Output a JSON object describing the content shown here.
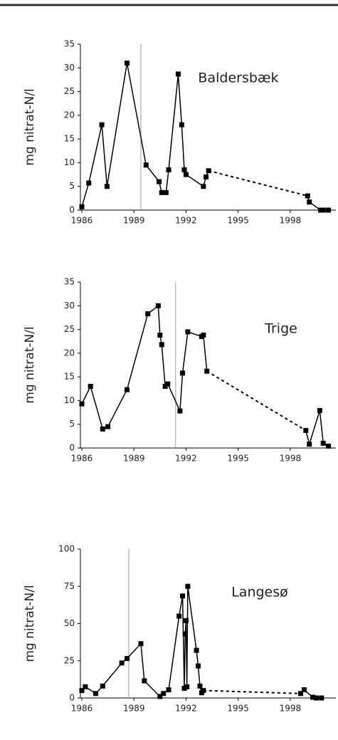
{
  "chart_data": [
    {
      "type": "line",
      "annotation": "Baldersbæk",
      "y_label": "mg nitrat-N/l",
      "color": "#000000",
      "x": [
        1986.0,
        1986.4,
        1987.15,
        1987.45,
        1988.6,
        1989.7,
        1990.45,
        1990.6,
        1990.85,
        1991.0,
        1991.55,
        1991.75,
        1991.9,
        1992.0,
        1993.0,
        1993.15,
        1993.3,
        1999.0,
        1999.1,
        1999.75,
        1999.9,
        2000.2
      ],
      "values": [
        0.7,
        5.7,
        18,
        5,
        31,
        9.5,
        6,
        3.7,
        3.7,
        8.5,
        28.7,
        18,
        8.5,
        7.5,
        5,
        7,
        8.3,
        3,
        1.7,
        0,
        0,
        0
      ],
      "dashed_segment_start": 16,
      "vline": 1989.4,
      "xlim": [
        1986,
        2000.3
      ],
      "ylim": [
        0,
        35
      ],
      "xticks": [
        1986,
        1989,
        1992,
        1995,
        1998
      ],
      "yticks": [
        0,
        5,
        10,
        15,
        20,
        25,
        30,
        35
      ]
    },
    {
      "type": "line",
      "annotation": "Trige",
      "y_label": "mg nitrat-N/l",
      "color": "#000000",
      "x": [
        1986.0,
        1986.5,
        1987.2,
        1987.5,
        1988.6,
        1989.8,
        1990.4,
        1990.5,
        1990.6,
        1990.8,
        1990.95,
        1991.65,
        1991.8,
        1992.1,
        1992.9,
        1993.0,
        1993.2,
        1998.9,
        1999.1,
        1999.7,
        1999.9,
        2000.2
      ],
      "values": [
        9.3,
        13,
        4,
        4.5,
        12.3,
        28.3,
        30,
        23.8,
        21.8,
        13,
        13.5,
        7.8,
        15.8,
        24.5,
        23.5,
        23.8,
        16.2,
        3.7,
        0.8,
        7.9,
        1,
        0.4
      ],
      "dashed_segment_start": 16,
      "vline": 1991.4,
      "xlim": [
        1986,
        2000.3
      ],
      "ylim": [
        0,
        35
      ],
      "xticks": [
        1986,
        1989,
        1992,
        1995,
        1998
      ],
      "yticks": [
        0,
        5,
        10,
        15,
        20,
        25,
        30,
        35
      ]
    },
    {
      "type": "line",
      "annotation": "Langesø",
      "y_label": "mg nitrat-N/l",
      "color": "#000000",
      "x": [
        1986.0,
        1986.2,
        1986.8,
        1987.2,
        1988.3,
        1988.6,
        1989.4,
        1989.6,
        1990.5,
        1990.7,
        1991.0,
        1991.6,
        1991.8,
        1991.9,
        1991.95,
        1992.0,
        1992.05,
        1992.1,
        1992.6,
        1992.7,
        1992.8,
        1992.9,
        1993.0,
        1998.6,
        1998.8,
        1999.3,
        1999.5,
        1999.8
      ],
      "values": [
        5,
        7.5,
        3,
        8,
        23.5,
        26.5,
        36.5,
        11.5,
        1,
        3,
        5.5,
        55,
        68.5,
        6.5,
        43,
        52,
        7.5,
        75,
        32,
        21.5,
        8,
        3.5,
        5,
        3,
        5.5,
        0.5,
        0,
        0
      ],
      "dashed_segment_start": 22,
      "vline": 1988.7,
      "xlim": [
        1986,
        2000.3
      ],
      "ylim": [
        0,
        100
      ],
      "xticks": [
        1986,
        1989,
        1992,
        1995,
        1998
      ],
      "yticks": [
        0,
        25,
        50,
        75,
        100
      ]
    }
  ]
}
